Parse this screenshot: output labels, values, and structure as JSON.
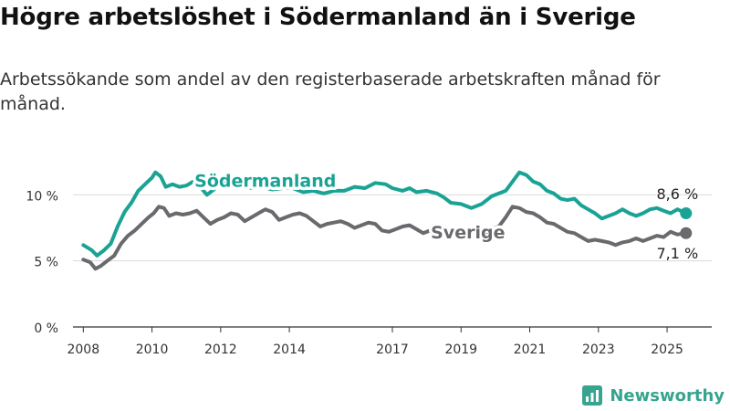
{
  "title": "Högre arbetslöshet i Södermanland än i Sverige",
  "subtitle": "Arbetssökande som andel av den registerbaserade arbetskraften månad för månad.",
  "brand": "Newsworthy",
  "colors": {
    "sodermanland": "#1aa394",
    "sverige": "#6a6a6e",
    "grid": "#d9d9d9",
    "axis": "#333333",
    "brand": "#36a48e"
  },
  "chart_data": {
    "type": "line",
    "xlim": [
      2007.7,
      2026.3
    ],
    "ylim": [
      0,
      12.3
    ],
    "y_ticks": [
      0,
      5,
      10
    ],
    "y_tick_labels": [
      "0 %",
      "5 %",
      "10 %"
    ],
    "x_ticks": [
      2008,
      2010,
      2012,
      2014,
      2017,
      2019,
      2021,
      2023,
      2025
    ],
    "x_tick_labels": [
      "2008",
      "2010",
      "2012",
      "2014",
      "2017",
      "2019",
      "2021",
      "2023",
      "2025"
    ],
    "grid": "horizontal",
    "series": [
      {
        "name": "Södermanland",
        "color": "#1aa394",
        "end_label": "8,6 %",
        "points": [
          [
            2008.0,
            6.2
          ],
          [
            2008.25,
            5.8
          ],
          [
            2008.4,
            5.4
          ],
          [
            2008.6,
            5.8
          ],
          [
            2008.8,
            6.3
          ],
          [
            2009.0,
            7.6
          ],
          [
            2009.2,
            8.7
          ],
          [
            2009.4,
            9.4
          ],
          [
            2009.6,
            10.3
          ],
          [
            2009.8,
            10.8
          ],
          [
            2010.0,
            11.3
          ],
          [
            2010.1,
            11.7
          ],
          [
            2010.25,
            11.4
          ],
          [
            2010.4,
            10.6
          ],
          [
            2010.6,
            10.8
          ],
          [
            2010.8,
            10.6
          ],
          [
            2011.0,
            10.7
          ],
          [
            2011.2,
            11.0
          ],
          [
            2011.4,
            10.6
          ],
          [
            2011.6,
            10.0
          ],
          [
            2011.8,
            10.4
          ],
          [
            2012.0,
            10.9
          ],
          [
            2012.3,
            11.0
          ],
          [
            2012.6,
            10.8
          ],
          [
            2012.9,
            10.5
          ],
          [
            2013.2,
            10.6
          ],
          [
            2013.5,
            10.4
          ],
          [
            2013.8,
            10.5
          ],
          [
            2014.1,
            10.5
          ],
          [
            2014.4,
            10.2
          ],
          [
            2014.7,
            10.3
          ],
          [
            2015.0,
            10.1
          ],
          [
            2015.3,
            10.3
          ],
          [
            2015.6,
            10.3
          ],
          [
            2015.9,
            10.6
          ],
          [
            2016.2,
            10.5
          ],
          [
            2016.5,
            10.9
          ],
          [
            2016.8,
            10.8
          ],
          [
            2017.0,
            10.5
          ],
          [
            2017.3,
            10.3
          ],
          [
            2017.5,
            10.5
          ],
          [
            2017.7,
            10.2
          ],
          [
            2018.0,
            10.3
          ],
          [
            2018.3,
            10.1
          ],
          [
            2018.5,
            9.8
          ],
          [
            2018.7,
            9.4
          ],
          [
            2019.0,
            9.3
          ],
          [
            2019.3,
            9.0
          ],
          [
            2019.6,
            9.3
          ],
          [
            2019.9,
            9.9
          ],
          [
            2020.1,
            10.1
          ],
          [
            2020.3,
            10.3
          ],
          [
            2020.5,
            11.0
          ],
          [
            2020.7,
            11.7
          ],
          [
            2020.9,
            11.5
          ],
          [
            2021.1,
            11.0
          ],
          [
            2021.3,
            10.8
          ],
          [
            2021.5,
            10.3
          ],
          [
            2021.7,
            10.1
          ],
          [
            2021.9,
            9.7
          ],
          [
            2022.1,
            9.6
          ],
          [
            2022.3,
            9.7
          ],
          [
            2022.5,
            9.2
          ],
          [
            2022.7,
            8.9
          ],
          [
            2022.9,
            8.6
          ],
          [
            2023.1,
            8.2
          ],
          [
            2023.3,
            8.4
          ],
          [
            2023.5,
            8.6
          ],
          [
            2023.7,
            8.9
          ],
          [
            2023.9,
            8.6
          ],
          [
            2024.1,
            8.4
          ],
          [
            2024.3,
            8.6
          ],
          [
            2024.5,
            8.9
          ],
          [
            2024.7,
            9.0
          ],
          [
            2024.9,
            8.8
          ],
          [
            2025.1,
            8.6
          ],
          [
            2025.3,
            8.9
          ],
          [
            2025.55,
            8.6
          ]
        ]
      },
      {
        "name": "Sverige",
        "color": "#6a6a6e",
        "end_label": "7,1 %",
        "points": [
          [
            2008.0,
            5.1
          ],
          [
            2008.2,
            4.9
          ],
          [
            2008.35,
            4.4
          ],
          [
            2008.5,
            4.6
          ],
          [
            2008.7,
            5.0
          ],
          [
            2008.9,
            5.4
          ],
          [
            2009.1,
            6.3
          ],
          [
            2009.3,
            6.9
          ],
          [
            2009.5,
            7.3
          ],
          [
            2009.7,
            7.8
          ],
          [
            2009.9,
            8.3
          ],
          [
            2010.05,
            8.6
          ],
          [
            2010.2,
            9.1
          ],
          [
            2010.35,
            9.0
          ],
          [
            2010.5,
            8.4
          ],
          [
            2010.7,
            8.6
          ],
          [
            2010.9,
            8.5
          ],
          [
            2011.1,
            8.6
          ],
          [
            2011.3,
            8.8
          ],
          [
            2011.5,
            8.3
          ],
          [
            2011.7,
            7.8
          ],
          [
            2011.9,
            8.1
          ],
          [
            2012.1,
            8.3
          ],
          [
            2012.3,
            8.6
          ],
          [
            2012.5,
            8.5
          ],
          [
            2012.7,
            8.0
          ],
          [
            2012.9,
            8.3
          ],
          [
            2013.1,
            8.6
          ],
          [
            2013.3,
            8.9
          ],
          [
            2013.5,
            8.7
          ],
          [
            2013.7,
            8.1
          ],
          [
            2013.9,
            8.3
          ],
          [
            2014.1,
            8.5
          ],
          [
            2014.3,
            8.6
          ],
          [
            2014.5,
            8.4
          ],
          [
            2014.7,
            8.0
          ],
          [
            2014.9,
            7.6
          ],
          [
            2015.1,
            7.8
          ],
          [
            2015.3,
            7.9
          ],
          [
            2015.5,
            8.0
          ],
          [
            2015.7,
            7.8
          ],
          [
            2015.9,
            7.5
          ],
          [
            2016.1,
            7.7
          ],
          [
            2016.3,
            7.9
          ],
          [
            2016.5,
            7.8
          ],
          [
            2016.7,
            7.3
          ],
          [
            2016.9,
            7.2
          ],
          [
            2017.1,
            7.4
          ],
          [
            2017.3,
            7.6
          ],
          [
            2017.5,
            7.7
          ],
          [
            2017.7,
            7.4
          ],
          [
            2017.9,
            7.1
          ],
          [
            2018.1,
            7.3
          ],
          [
            2018.3,
            7.2
          ],
          [
            2018.5,
            6.9
          ],
          [
            2018.7,
            6.8
          ],
          [
            2018.9,
            6.8
          ],
          [
            2019.1,
            6.9
          ],
          [
            2019.3,
            6.8
          ],
          [
            2019.5,
            6.8
          ],
          [
            2019.7,
            7.0
          ],
          [
            2019.9,
            7.4
          ],
          [
            2020.1,
            7.6
          ],
          [
            2020.3,
            8.3
          ],
          [
            2020.5,
            9.1
          ],
          [
            2020.7,
            9.0
          ],
          [
            2020.9,
            8.7
          ],
          [
            2021.1,
            8.6
          ],
          [
            2021.3,
            8.3
          ],
          [
            2021.5,
            7.9
          ],
          [
            2021.7,
            7.8
          ],
          [
            2021.9,
            7.5
          ],
          [
            2022.1,
            7.2
          ],
          [
            2022.3,
            7.1
          ],
          [
            2022.5,
            6.8
          ],
          [
            2022.7,
            6.5
          ],
          [
            2022.9,
            6.6
          ],
          [
            2023.1,
            6.5
          ],
          [
            2023.3,
            6.4
          ],
          [
            2023.5,
            6.2
          ],
          [
            2023.7,
            6.4
          ],
          [
            2023.9,
            6.5
          ],
          [
            2024.1,
            6.7
          ],
          [
            2024.3,
            6.5
          ],
          [
            2024.5,
            6.7
          ],
          [
            2024.7,
            6.9
          ],
          [
            2024.9,
            6.8
          ],
          [
            2025.1,
            7.2
          ],
          [
            2025.3,
            7.0
          ],
          [
            2025.55,
            7.1
          ]
        ]
      }
    ],
    "series_labels": [
      {
        "text": "Södermanland",
        "x": 2013.3,
        "y": 11.1
      },
      {
        "text": "Sverige",
        "x": 2019.2,
        "y": 7.2
      }
    ],
    "end_labels": [
      {
        "text": "8,6 %",
        "x": 2025.3,
        "y": 10.1
      },
      {
        "text": "7,1 %",
        "x": 2025.3,
        "y": 5.6
      }
    ]
  }
}
